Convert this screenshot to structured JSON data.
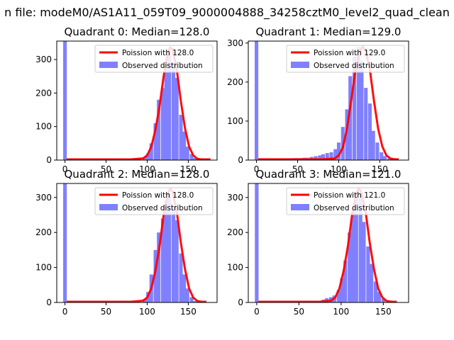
{
  "figure": {
    "suptitle": "n file: modeM0/AS1A11_059T09_9000004888_34258cztM0_level2_quad_clean"
  },
  "colors": {
    "observed_bar": "#8080ff",
    "poisson_line": "#ff0000",
    "axes": "#000000"
  },
  "chart_data": [
    {
      "type": "bar",
      "title": "Quadrant 0: Median=128.0",
      "median": 128.0,
      "xlim": [
        -10,
        185
      ],
      "ylim": [
        0,
        355
      ],
      "xticks": [
        0,
        50,
        100,
        150
      ],
      "yticks": [
        0,
        100,
        200,
        300
      ],
      "legend": [
        "Poission with 128.0",
        "Observed distribution"
      ],
      "legend_loc": "upper right",
      "bars": {
        "bin_width": 4.4,
        "x": [
          0,
          75,
          97,
          101,
          105,
          110,
          114,
          119,
          123,
          127,
          132,
          136,
          141,
          145,
          149,
          154,
          158,
          162
        ],
        "values": [
          355,
          5,
          8,
          20,
          50,
          110,
          180,
          215,
          285,
          320,
          290,
          245,
          135,
          85,
          40,
          18,
          6,
          2
        ]
      },
      "poisson": {
        "x": [
          2,
          80,
          95,
          100,
          105,
          110,
          115,
          120,
          125,
          128,
          131,
          136,
          141,
          146,
          151,
          156,
          161,
          166,
          172,
          177
        ],
        "y": [
          2,
          2,
          5,
          14,
          40,
          90,
          160,
          250,
          320,
          336,
          330,
          270,
          175,
          95,
          40,
          14,
          4,
          2,
          2,
          2
        ]
      }
    },
    {
      "type": "bar",
      "title": "Quadrant 1: Median=129.0",
      "median": 129.0,
      "xlim": [
        -10,
        185
      ],
      "ylim": [
        0,
        305
      ],
      "xticks": [
        0,
        50,
        100,
        150
      ],
      "yticks": [
        0,
        100,
        200,
        300
      ],
      "legend": [
        "Poission with 129.0",
        "Observed distribution"
      ],
      "legend_loc": "upper right",
      "bars": {
        "bin_width": 4.4,
        "x": [
          0,
          30,
          48,
          53,
          58,
          62,
          67,
          72,
          77,
          81,
          86,
          91,
          96,
          100,
          105,
          110,
          114,
          119,
          124,
          128,
          133,
          138,
          142,
          147,
          152,
          156,
          161
        ],
        "values": [
          305,
          3,
          5,
          5,
          6,
          6,
          8,
          10,
          12,
          15,
          18,
          20,
          28,
          45,
          85,
          130,
          215,
          265,
          290,
          255,
          185,
          145,
          75,
          45,
          20,
          10,
          4
        ]
      },
      "poisson": {
        "x": [
          2,
          80,
          95,
          100,
          105,
          110,
          115,
          120,
          125,
          129,
          133,
          138,
          143,
          148,
          153,
          158,
          163,
          168,
          173
        ],
        "y": [
          2,
          2,
          4,
          12,
          32,
          80,
          150,
          225,
          275,
          291,
          280,
          230,
          150,
          80,
          35,
          12,
          4,
          2,
          2
        ]
      }
    },
    {
      "type": "bar",
      "title": "Quadrant 2: Median=128.0",
      "median": 128.0,
      "xlim": [
        -10,
        185
      ],
      "ylim": [
        0,
        340
      ],
      "xticks": [
        0,
        50,
        100,
        150
      ],
      "yticks": [
        0,
        100,
        200,
        300
      ],
      "legend": [
        "Poission with 128.0",
        "Observed distribution"
      ],
      "legend_loc": "upper right",
      "bars": {
        "bin_width": 4.4,
        "x": [
          0,
          75,
          80,
          97,
          101,
          105,
          110,
          114,
          119,
          123,
          127,
          132,
          136,
          141,
          145,
          149,
          154,
          158
        ],
        "values": [
          340,
          3,
          3,
          10,
          30,
          80,
          150,
          200,
          240,
          290,
          310,
          275,
          235,
          140,
          80,
          40,
          15,
          4
        ]
      },
      "poisson": {
        "x": [
          2,
          80,
          95,
          100,
          105,
          110,
          115,
          120,
          125,
          128,
          131,
          136,
          141,
          146,
          151,
          156,
          161,
          166,
          172
        ],
        "y": [
          2,
          2,
          5,
          14,
          40,
          90,
          160,
          250,
          310,
          325,
          315,
          260,
          170,
          95,
          40,
          14,
          4,
          2,
          2
        ]
      }
    },
    {
      "type": "bar",
      "title": "Quadrant 3: Median=121.0",
      "median": 121.0,
      "xlim": [
        -10,
        180
      ],
      "ylim": [
        0,
        340
      ],
      "xticks": [
        0,
        50,
        100,
        150
      ],
      "yticks": [
        0,
        100,
        200,
        300
      ],
      "legend": [
        "Poission with 121.0",
        "Observed distribution"
      ],
      "legend_loc": "upper right",
      "bars": {
        "bin_width": 4.4,
        "x": [
          0,
          60,
          65,
          75,
          79,
          83,
          88,
          92,
          97,
          101,
          105,
          110,
          114,
          118,
          123,
          127,
          132,
          136,
          141,
          145,
          150
        ],
        "values": [
          340,
          2,
          3,
          5,
          8,
          12,
          15,
          20,
          35,
          70,
          120,
          200,
          260,
          300,
          310,
          230,
          160,
          110,
          60,
          30,
          10
        ]
      },
      "poisson": {
        "x": [
          2,
          75,
          88,
          93,
          98,
          103,
          108,
          113,
          118,
          121,
          124,
          129,
          134,
          139,
          144,
          149,
          154,
          160,
          166
        ],
        "y": [
          2,
          2,
          5,
          14,
          40,
          90,
          160,
          250,
          310,
          326,
          315,
          260,
          170,
          95,
          40,
          14,
          4,
          2,
          2
        ]
      }
    }
  ]
}
